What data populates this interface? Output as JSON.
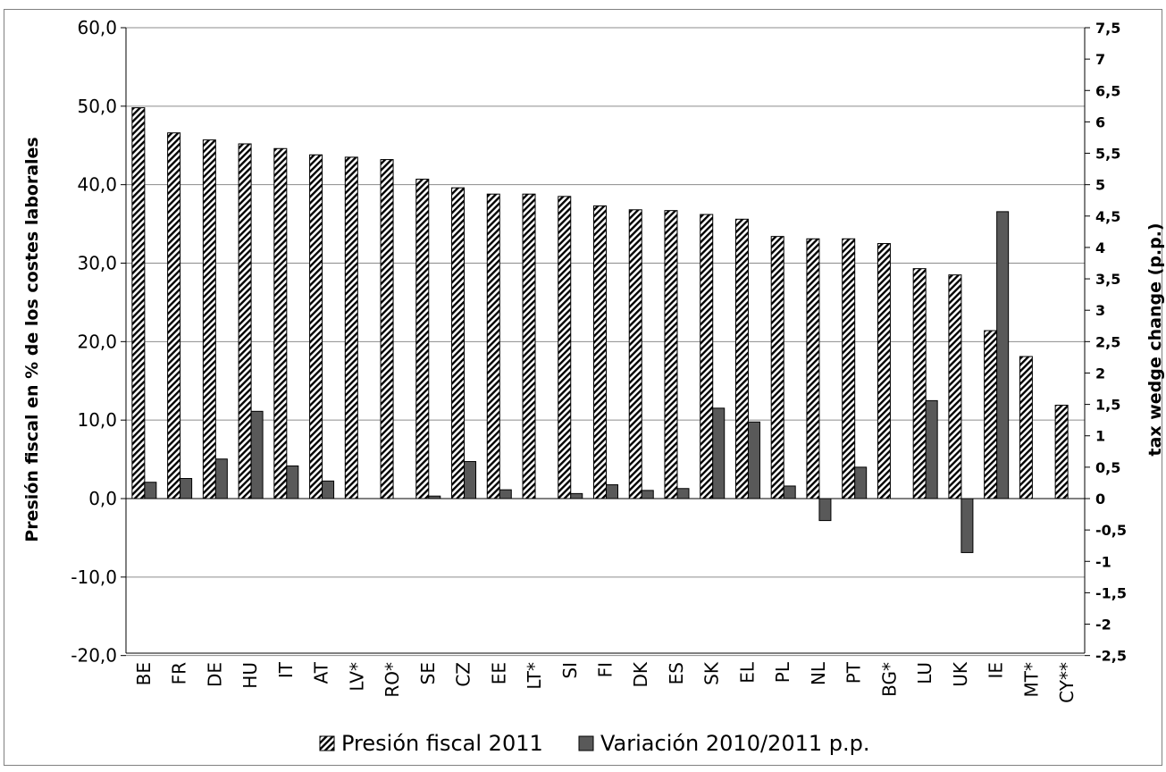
{
  "chart_data": {
    "type": "bar",
    "categories": [
      "BE",
      "FR",
      "DE",
      "HU",
      "IT",
      "AT",
      "LV*",
      "RO*",
      "SE",
      "CZ",
      "EE",
      "LT*",
      "SI",
      "FI",
      "DK",
      "ES",
      "SK",
      "EL",
      "PL",
      "NL",
      "PT",
      "BG*",
      "LU",
      "UK",
      "IE",
      "MT*",
      "CY**"
    ],
    "series": [
      {
        "name": "Presión fiscal 2011",
        "axis": "left",
        "pattern": "diagonal-hatch",
        "values": [
          49.8,
          46.6,
          45.7,
          45.2,
          44.6,
          43.8,
          43.5,
          43.2,
          40.7,
          39.6,
          38.8,
          38.8,
          38.5,
          37.3,
          36.8,
          36.7,
          36.2,
          35.6,
          33.4,
          33.1,
          33.1,
          32.5,
          29.3,
          28.5,
          21.4,
          18.1,
          11.9
        ]
      },
      {
        "name": "Variación 2010/2011 p.p.",
        "axis": "right",
        "color": "#595959",
        "values": [
          0.26,
          0.32,
          0.63,
          1.39,
          0.52,
          0.28,
          null,
          null,
          0.04,
          0.59,
          0.14,
          null,
          0.08,
          0.22,
          0.13,
          0.16,
          1.44,
          1.22,
          0.2,
          -0.35,
          0.5,
          null,
          1.56,
          -0.86,
          4.57,
          null,
          null
        ]
      }
    ],
    "ylabel": "Presión fiscal en % de los costes laborales",
    "y2label": "tax wedge change (p.p.)",
    "ylim": [
      -20,
      60
    ],
    "y2lim": [
      -2.5,
      7.5
    ],
    "y_ticks": [
      "-20,0",
      "-10,0",
      "0,0",
      "10,0",
      "20,0",
      "30,0",
      "40,0",
      "50,0",
      "60,0"
    ],
    "y2_ticks": [
      "-2,5",
      "-2",
      "-1,5",
      "-1",
      "-0,5",
      "0",
      "0,5",
      "1",
      "1,5",
      "2",
      "2,5",
      "3",
      "3,5",
      "4",
      "4,5",
      "5",
      "5,5",
      "6",
      "6,5",
      "7",
      "7,5"
    ],
    "grid": true,
    "legend_position": "bottom",
    "legend": [
      "Presión fiscal 2011",
      "Variación 2010/2011 p.p."
    ],
    "colors": {
      "bar_dark": "#595959",
      "grid": "#8c8c8c",
      "border": "#808080"
    }
  }
}
